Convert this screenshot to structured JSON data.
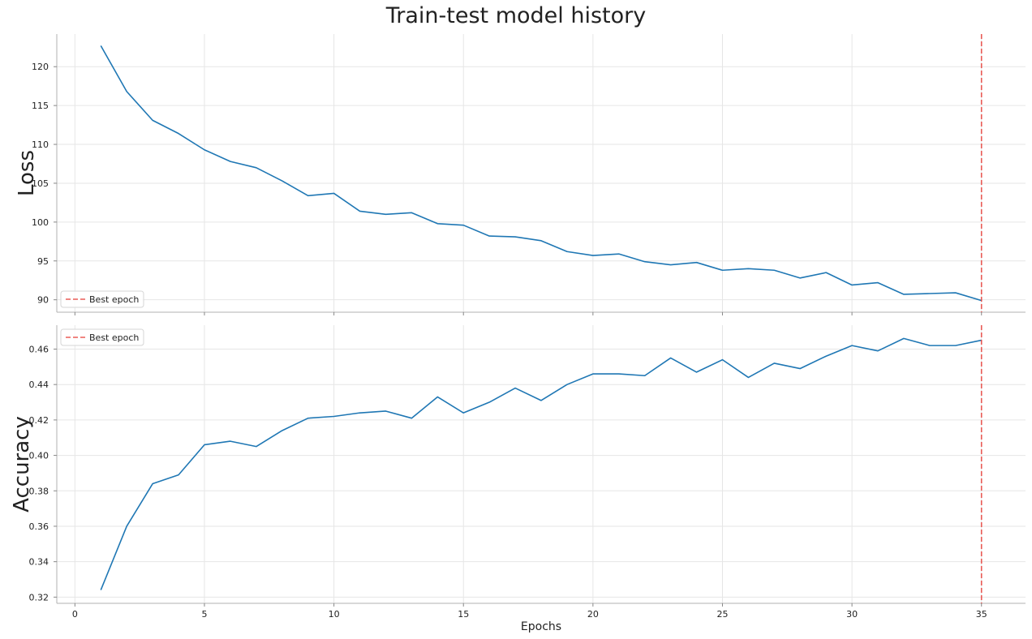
{
  "figure": {
    "title": "Train-test model history"
  },
  "chart_data": [
    {
      "type": "line",
      "ylabel": "Loss",
      "xlabel": "",
      "xlim": [
        -0.7,
        36.7
      ],
      "ylim": [
        88.4,
        124.2
      ],
      "x_ticks": [
        0,
        5,
        10,
        15,
        20,
        25,
        30,
        35
      ],
      "y_ticks": [
        90,
        95,
        100,
        105,
        110,
        115,
        120
      ],
      "grid": true,
      "legend": {
        "placement": "lower-left",
        "entries": [
          "Best epoch"
        ]
      },
      "best_epoch": 35,
      "series": [
        {
          "color": "#1f77b4",
          "x": [
            1,
            2,
            3,
            4,
            5,
            6,
            7,
            8,
            9,
            10,
            11,
            12,
            13,
            14,
            15,
            16,
            17,
            18,
            19,
            20,
            21,
            22,
            23,
            24,
            25,
            26,
            27,
            28,
            29,
            30,
            31,
            32,
            33,
            34,
            35
          ],
          "values": [
            122.7,
            116.8,
            113.1,
            111.4,
            109.3,
            107.8,
            107.0,
            105.3,
            103.4,
            103.7,
            101.4,
            101.0,
            101.2,
            99.8,
            99.6,
            98.2,
            98.1,
            97.6,
            96.2,
            95.7,
            95.9,
            94.9,
            94.5,
            94.8,
            93.8,
            94.0,
            93.8,
            92.8,
            93.5,
            91.9,
            92.2,
            90.7,
            90.8,
            90.9,
            89.9
          ]
        }
      ],
      "best_line_color": "#e8413a"
    },
    {
      "type": "line",
      "ylabel": "Accuracy",
      "xlabel": "Epochs",
      "xlim": [
        -0.7,
        36.7
      ],
      "ylim": [
        0.3165,
        0.4735
      ],
      "x_ticks": [
        0,
        5,
        10,
        15,
        20,
        25,
        30,
        35
      ],
      "y_ticks": [
        0.32,
        0.34,
        0.36,
        0.38,
        0.4,
        0.42,
        0.44,
        0.46
      ],
      "y_tick_labels": [
        "0.32",
        "0.34",
        "0.36",
        "0.38",
        "0.40",
        "0.42",
        "0.44",
        "0.46"
      ],
      "grid": true,
      "legend": {
        "placement": "top-left",
        "entries": [
          "Best epoch"
        ]
      },
      "best_epoch": 35,
      "series": [
        {
          "color": "#1f77b4",
          "x": [
            1,
            2,
            3,
            4,
            5,
            6,
            7,
            8,
            9,
            10,
            11,
            12,
            13,
            14,
            15,
            16,
            17,
            18,
            19,
            20,
            21,
            22,
            23,
            24,
            25,
            26,
            27,
            28,
            29,
            30,
            31,
            32,
            33,
            34,
            35
          ],
          "values": [
            0.324,
            0.36,
            0.384,
            0.389,
            0.406,
            0.408,
            0.405,
            0.414,
            0.421,
            0.422,
            0.424,
            0.425,
            0.421,
            0.433,
            0.424,
            0.43,
            0.438,
            0.431,
            0.44,
            0.446,
            0.446,
            0.445,
            0.455,
            0.447,
            0.454,
            0.444,
            0.452,
            0.449,
            0.456,
            0.462,
            0.459,
            0.466,
            0.462,
            0.462,
            0.465
          ]
        }
      ],
      "best_line_color": "#e8413a"
    }
  ]
}
